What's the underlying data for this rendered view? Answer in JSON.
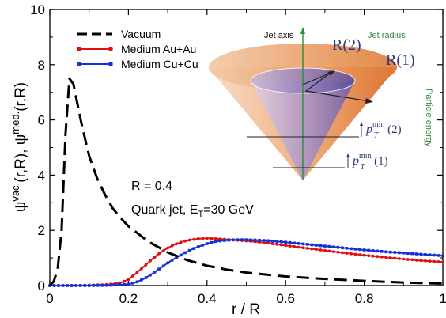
{
  "chart_data": {
    "type": "line",
    "xlabel": "r / R",
    "ylabel_main": "ψ",
    "ylabel_sup1": "vac.",
    "ylabel_mid": "(r,R),  ψ",
    "ylabel_sup2": "med.",
    "ylabel_end": "(r,R)",
    "xlim": [
      0,
      1
    ],
    "ylim": [
      0,
      10
    ],
    "xticks": [
      "0",
      "0.2",
      "0.4",
      "0.6",
      "0.8",
      "1"
    ],
    "yticks": [
      "0",
      "2",
      "4",
      "6",
      "8",
      "10"
    ],
    "legend_position": "top-left",
    "grid": false,
    "annotations": {
      "radius": "R = 0.4",
      "jet_prefix": "Quark jet, E",
      "jet_sub": "T",
      "jet_suffix": "=30 GeV"
    },
    "series": [
      {
        "name": "Vacuum",
        "color": "#000000",
        "style": "dashed",
        "x": [
          0,
          0.01,
          0.02,
          0.03,
          0.04,
          0.05,
          0.06,
          0.07,
          0.08,
          0.09,
          0.1,
          0.12,
          0.14,
          0.16,
          0.18,
          0.2,
          0.25,
          0.3,
          0.35,
          0.4,
          0.45,
          0.5,
          0.6,
          0.7,
          0.8,
          0.9,
          1.0
        ],
        "y": [
          0,
          0.15,
          0.6,
          2.0,
          5.5,
          7.5,
          7.3,
          6.6,
          5.9,
          5.3,
          4.7,
          3.9,
          3.3,
          2.8,
          2.45,
          2.15,
          1.6,
          1.2,
          0.92,
          0.72,
          0.58,
          0.47,
          0.33,
          0.24,
          0.17,
          0.11,
          0.07
        ]
      },
      {
        "name": "Medium Au+Au",
        "color": "#e01010",
        "style": "solid-dots",
        "x": [
          0,
          0.05,
          0.1,
          0.15,
          0.18,
          0.2,
          0.22,
          0.24,
          0.26,
          0.28,
          0.3,
          0.32,
          0.34,
          0.36,
          0.38,
          0.4,
          0.42,
          0.44,
          0.46,
          0.48,
          0.5,
          0.55,
          0.6,
          0.65,
          0.7,
          0.75,
          0.8,
          0.85,
          0.9,
          0.95,
          1.0
        ],
        "y": [
          0,
          0,
          0.01,
          0.04,
          0.1,
          0.22,
          0.45,
          0.7,
          0.95,
          1.18,
          1.36,
          1.5,
          1.6,
          1.66,
          1.7,
          1.71,
          1.7,
          1.68,
          1.66,
          1.64,
          1.62,
          1.55,
          1.45,
          1.36,
          1.27,
          1.18,
          1.1,
          1.03,
          0.96,
          0.9,
          0.85
        ]
      },
      {
        "name": "Medium Cu+Cu",
        "color": "#1530d8",
        "style": "solid-dots",
        "x": [
          0,
          0.05,
          0.1,
          0.15,
          0.2,
          0.22,
          0.24,
          0.26,
          0.28,
          0.3,
          0.32,
          0.34,
          0.36,
          0.38,
          0.4,
          0.42,
          0.44,
          0.46,
          0.48,
          0.5,
          0.55,
          0.6,
          0.65,
          0.7,
          0.75,
          0.8,
          0.85,
          0.9,
          0.95,
          1.0
        ],
        "y": [
          0,
          0,
          0,
          0.01,
          0.05,
          0.12,
          0.25,
          0.42,
          0.62,
          0.82,
          1.0,
          1.16,
          1.3,
          1.42,
          1.52,
          1.59,
          1.63,
          1.65,
          1.66,
          1.66,
          1.63,
          1.57,
          1.5,
          1.43,
          1.36,
          1.29,
          1.23,
          1.18,
          1.13,
          1.08
        ]
      }
    ],
    "inset": {
      "jet_axis": "Jet axis",
      "jet_radius": "Jet radius",
      "r2": "R(2)",
      "r1": "R(1)",
      "pt2_main": "p",
      "pt2_sub": "T",
      "pt2_sup": "min",
      "pt2_arg": "(2)",
      "pt1_main": "p",
      "pt1_sub": "T",
      "pt1_sup": "min",
      "pt1_arg": "(1)",
      "particle_energy": "Particle energy"
    }
  }
}
